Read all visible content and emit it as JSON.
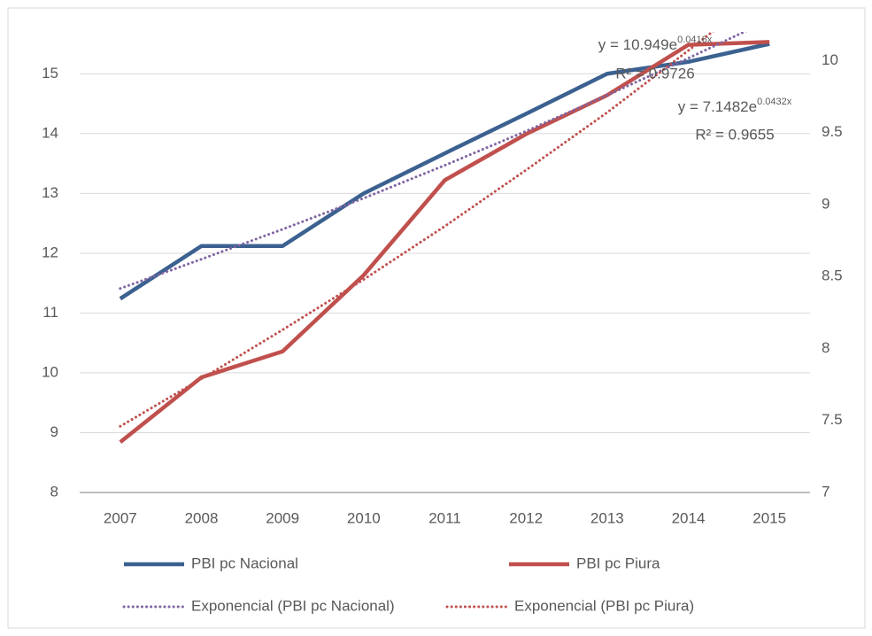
{
  "chart_data": {
    "type": "line",
    "categories": [
      "2007",
      "2008",
      "2009",
      "2010",
      "2011",
      "2012",
      "2013",
      "2014",
      "2015"
    ],
    "series": [
      {
        "name": "PBI pc Nacional",
        "color": "#3b6190",
        "style": "solid",
        "axis": "y",
        "values": [
          11.24,
          12.12,
          12.12,
          13.0,
          13.67,
          14.33,
          15.0,
          15.2,
          15.5
        ]
      },
      {
        "name": "PBI pc Piura",
        "color": "#c0504d",
        "style": "solid",
        "axis": "y2",
        "values": [
          7.35,
          7.8,
          7.98,
          8.51,
          9.17,
          9.49,
          9.76,
          10.11,
          10.13
        ]
      },
      {
        "name": "Exponencial (PBI pc Nacional)",
        "color": "#8064a2",
        "style": "dotted",
        "axis": "y",
        "values": [
          11.41,
          11.9,
          12.4,
          12.92,
          13.47,
          14.04,
          14.64,
          15.26,
          15.9
        ]
      },
      {
        "name": "Exponencial (PBI pc Piura)",
        "color": "#c0504d",
        "style": "dotted",
        "axis": "y2",
        "values": [
          7.46,
          7.79,
          8.13,
          8.48,
          8.85,
          9.24,
          9.64,
          10.07,
          10.51
        ]
      }
    ],
    "annotations": [
      {
        "equation": "y = 10.949e",
        "exponent": "0.0416x",
        "r2": "R² = 0.9726"
      },
      {
        "equation": "y = 7.1482e",
        "exponent": "0.0432x",
        "r2": "R² = 0.9655"
      }
    ],
    "ylim": [
      8,
      15.7
    ],
    "yticks": [
      8,
      9,
      10,
      11,
      12,
      13,
      14,
      15
    ],
    "y2lim": [
      7,
      10.2
    ],
    "y2ticks": [
      7,
      7.5,
      8,
      8.5,
      9,
      9.5,
      10
    ],
    "grid": true
  }
}
